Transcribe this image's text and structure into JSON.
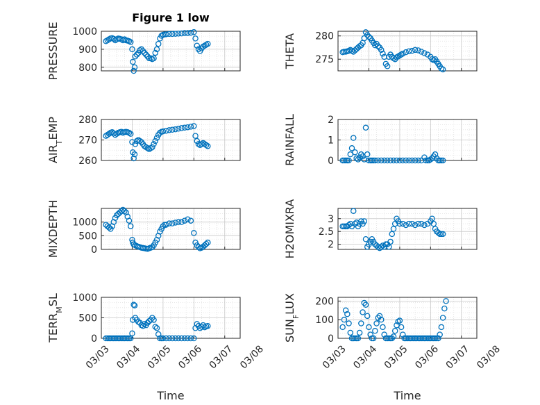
{
  "figure": {
    "title": "Figure 1 low",
    "xlabel": "Time"
  },
  "colors": {
    "marker": "#0072BD",
    "axes": "#262626",
    "grid": "#c8c8c8",
    "minor_grid": "#e0e0e0"
  },
  "chart_data": [
    {
      "type": "scatter",
      "panel": "top-left",
      "title": "Figure 1 low",
      "ylabel": "PRESSURE",
      "xlim": [
        0,
        4.5
      ],
      "ylim": [
        780,
        1000
      ],
      "yticks": [
        800,
        900,
        1000
      ],
      "xticks": [],
      "grid": "on",
      "series": [
        {
          "x": [
            0.15,
            0.2,
            0.25,
            0.3,
            0.35,
            0.4,
            0.45,
            0.5,
            0.55,
            0.6,
            0.65,
            0.7,
            0.75,
            0.8,
            0.85,
            0.9,
            0.95,
            1.0,
            1.02,
            1.05,
            1.08,
            1.1,
            1.15,
            1.2,
            1.25,
            1.3,
            1.35,
            1.4,
            1.45,
            1.5,
            1.55,
            1.6,
            1.65,
            1.7,
            1.75,
            1.8,
            1.85,
            1.9,
            1.95,
            2.0,
            2.05,
            2.1,
            2.2,
            2.3,
            2.4,
            2.5,
            2.6,
            2.7,
            2.8,
            2.9,
            3.0,
            3.05,
            3.1,
            3.15,
            3.2,
            3.25,
            3.3,
            3.35,
            3.4,
            3.45
          ],
          "y": [
            945,
            950,
            955,
            960,
            962,
            958,
            950,
            955,
            960,
            958,
            955,
            950,
            955,
            950,
            948,
            945,
            940,
            900,
            830,
            780,
            800,
            860,
            870,
            880,
            895,
            900,
            890,
            880,
            870,
            860,
            850,
            850,
            845,
            850,
            880,
            900,
            930,
            960,
            975,
            980,
            982,
            983,
            985,
            985,
            986,
            987,
            988,
            990,
            990,
            992,
            995,
            960,
            920,
            900,
            890,
            905,
            915,
            920,
            925,
            930
          ]
        }
      ]
    },
    {
      "type": "scatter",
      "panel": "top-right",
      "ylabel": "THETA",
      "xlim": [
        0,
        4.5
      ],
      "ylim": [
        272.5,
        281
      ],
      "yticks": [
        275,
        280
      ],
      "xticks": [],
      "grid": "on",
      "series": [
        {
          "x": [
            0.15,
            0.2,
            0.25,
            0.3,
            0.35,
            0.4,
            0.45,
            0.5,
            0.55,
            0.6,
            0.65,
            0.7,
            0.75,
            0.8,
            0.85,
            0.9,
            0.95,
            1.0,
            1.05,
            1.1,
            1.15,
            1.2,
            1.25,
            1.3,
            1.35,
            1.4,
            1.45,
            1.5,
            1.55,
            1.6,
            1.65,
            1.7,
            1.75,
            1.8,
            1.85,
            1.9,
            1.95,
            2.0,
            2.05,
            2.1,
            2.2,
            2.3,
            2.4,
            2.5,
            2.6,
            2.7,
            2.8,
            2.9,
            3.0,
            3.05,
            3.1,
            3.15,
            3.2,
            3.25,
            3.3,
            3.35,
            3.4
          ],
          "y": [
            276.5,
            276.6,
            276.6,
            276.7,
            276.8,
            277.0,
            276.8,
            276.6,
            276.9,
            277.2,
            277.5,
            277.8,
            278.0,
            278.5,
            279.5,
            280.8,
            280.2,
            279.8,
            279.5,
            279.0,
            278.5,
            278.0,
            278.3,
            277.8,
            277.5,
            277.0,
            276.2,
            275.5,
            274.0,
            273.5,
            275.5,
            276.0,
            275.5,
            275.2,
            275.0,
            275.4,
            275.6,
            275.8,
            276.0,
            276.2,
            276.5,
            276.7,
            276.8,
            277.0,
            276.9,
            276.6,
            276.3,
            276.0,
            275.5,
            275.0,
            274.8,
            275.0,
            274.5,
            274.0,
            273.5,
            273.0,
            272.8
          ]
        }
      ]
    },
    {
      "type": "scatter",
      "panel": "second-left",
      "ylabel": "AIR",
      "ylabel_sub": "T",
      "ylabel_tail": "EMP",
      "xlim": [
        0,
        4.5
      ],
      "ylim": [
        260,
        280
      ],
      "yticks": [
        260,
        270,
        280
      ],
      "xticks": [],
      "grid": "on",
      "series": [
        {
          "x": [
            0.15,
            0.2,
            0.25,
            0.3,
            0.35,
            0.4,
            0.45,
            0.5,
            0.55,
            0.6,
            0.65,
            0.7,
            0.75,
            0.8,
            0.85,
            0.9,
            0.95,
            1.0,
            1.02,
            1.05,
            1.08,
            1.1,
            1.15,
            1.2,
            1.25,
            1.3,
            1.35,
            1.4,
            1.45,
            1.5,
            1.55,
            1.6,
            1.65,
            1.7,
            1.75,
            1.8,
            1.85,
            1.9,
            1.95,
            2.0,
            2.1,
            2.2,
            2.3,
            2.4,
            2.5,
            2.6,
            2.7,
            2.8,
            2.9,
            3.0,
            3.05,
            3.1,
            3.15,
            3.2,
            3.25,
            3.3,
            3.35,
            3.4,
            3.45
          ],
          "y": [
            272,
            272.5,
            273,
            273.5,
            273.8,
            273.2,
            272.5,
            273,
            273.5,
            273.8,
            274,
            273.5,
            273.8,
            274,
            273.8,
            273.5,
            273,
            269,
            264,
            261,
            263,
            268,
            269.5,
            270,
            269.5,
            269,
            268,
            267,
            266.5,
            266,
            265.5,
            266,
            266.5,
            268,
            269.5,
            271,
            272.5,
            273.5,
            274,
            274.2,
            274.5,
            274.8,
            275,
            275.2,
            275.5,
            275.8,
            276,
            276.2,
            276.5,
            276.8,
            272,
            269.5,
            268,
            267.5,
            268,
            268.5,
            268,
            267.5,
            267
          ]
        }
      ]
    },
    {
      "type": "scatter",
      "panel": "second-right",
      "ylabel": "RAINFALL",
      "xlim": [
        0,
        4.5
      ],
      "ylim": [
        0,
        2
      ],
      "yticks": [
        0,
        1,
        2
      ],
      "xticks": [],
      "grid": "on",
      "series": [
        {
          "x": [
            0.15,
            0.2,
            0.25,
            0.3,
            0.35,
            0.4,
            0.45,
            0.5,
            0.55,
            0.6,
            0.65,
            0.7,
            0.75,
            0.8,
            0.85,
            0.9,
            0.95,
            1.0,
            1.05,
            1.1,
            1.15,
            1.2,
            1.3,
            1.4,
            1.5,
            1.6,
            1.7,
            1.8,
            1.9,
            2.0,
            2.1,
            2.2,
            2.3,
            2.4,
            2.5,
            2.6,
            2.7,
            2.8,
            2.85,
            2.9,
            2.95,
            3.0,
            3.05,
            3.1,
            3.15,
            3.2,
            3.25,
            3.3,
            3.35,
            3.4
          ],
          "y": [
            0,
            0,
            0,
            0,
            0,
            0.3,
            0.6,
            1.1,
            0.4,
            0.1,
            0.05,
            0.15,
            0.3,
            0.2,
            0.05,
            1.6,
            0.3,
            0,
            0,
            0,
            0,
            0,
            0,
            0,
            0,
            0,
            0,
            0,
            0,
            0,
            0,
            0,
            0,
            0,
            0,
            0,
            0,
            0.15,
            0,
            0,
            0,
            0.05,
            0.1,
            0.2,
            0.3,
            0.1,
            0,
            0,
            0,
            0
          ]
        }
      ]
    },
    {
      "type": "scatter",
      "panel": "third-left",
      "ylabel": "MIXDEPTH",
      "xlim": [
        0,
        4.5
      ],
      "ylim": [
        0,
        1500
      ],
      "yticks": [
        0,
        500,
        1000
      ],
      "xticks": [],
      "grid": "on",
      "series": [
        {
          "x": [
            0.15,
            0.2,
            0.25,
            0.3,
            0.35,
            0.4,
            0.45,
            0.5,
            0.55,
            0.6,
            0.65,
            0.7,
            0.75,
            0.8,
            0.85,
            0.9,
            0.95,
            1.0,
            1.02,
            1.05,
            1.1,
            1.15,
            1.2,
            1.25,
            1.3,
            1.35,
            1.4,
            1.45,
            1.5,
            1.55,
            1.6,
            1.65,
            1.7,
            1.75,
            1.8,
            1.85,
            1.9,
            1.95,
            2.0,
            2.05,
            2.1,
            2.2,
            2.3,
            2.4,
            2.5,
            2.6,
            2.7,
            2.8,
            2.9,
            3.0,
            3.05,
            3.1,
            3.15,
            3.2,
            3.25,
            3.3,
            3.35,
            3.4,
            3.45
          ],
          "y": [
            900,
            850,
            800,
            750,
            850,
            1000,
            1150,
            1250,
            1300,
            1350,
            1400,
            1450,
            1400,
            1350,
            1200,
            1050,
            850,
            350,
            250,
            180,
            150,
            120,
            100,
            80,
            60,
            50,
            40,
            30,
            20,
            40,
            60,
            80,
            150,
            250,
            350,
            500,
            650,
            750,
            850,
            900,
            900,
            950,
            950,
            980,
            1000,
            1000,
            1050,
            1100,
            1050,
            600,
            250,
            150,
            80,
            40,
            60,
            100,
            150,
            200,
            250
          ]
        }
      ]
    },
    {
      "type": "scatter",
      "panel": "third-right",
      "ylabel": "H2OMIXRA",
      "xlim": [
        0,
        4.5
      ],
      "ylim": [
        1.8,
        3.4
      ],
      "yticks": [
        2,
        2.5,
        3
      ],
      "xticks": [],
      "grid": "on",
      "series": [
        {
          "x": [
            0.15,
            0.2,
            0.25,
            0.3,
            0.35,
            0.4,
            0.45,
            0.5,
            0.55,
            0.6,
            0.65,
            0.7,
            0.75,
            0.8,
            0.85,
            0.9,
            0.95,
            1.0,
            1.05,
            1.1,
            1.15,
            1.2,
            1.25,
            1.3,
            1.35,
            1.4,
            1.45,
            1.5,
            1.55,
            1.6,
            1.65,
            1.7,
            1.75,
            1.8,
            1.85,
            1.9,
            1.95,
            2.0,
            2.1,
            2.2,
            2.3,
            2.4,
            2.5,
            2.6,
            2.7,
            2.8,
            2.9,
            3.0,
            3.05,
            3.1,
            3.15,
            3.2,
            3.25,
            3.3,
            3.35,
            3.4
          ],
          "y": [
            2.7,
            2.7,
            2.7,
            2.7,
            2.75,
            2.8,
            2.7,
            3.3,
            2.8,
            2.85,
            2.7,
            2.8,
            2.9,
            2.8,
            2.9,
            2.2,
            1.9,
            2.0,
            2.1,
            2.2,
            2.1,
            2.0,
            1.95,
            1.9,
            1.85,
            1.9,
            1.95,
            1.9,
            2.0,
            2.0,
            1.9,
            2.1,
            2.4,
            2.6,
            2.8,
            3.0,
            2.9,
            2.8,
            2.8,
            2.75,
            2.8,
            2.8,
            2.75,
            2.8,
            2.8,
            2.75,
            2.8,
            2.9,
            3.0,
            2.8,
            2.6,
            2.5,
            2.45,
            2.4,
            2.4,
            2.4
          ]
        }
      ]
    },
    {
      "type": "scatter",
      "panel": "bottom-left",
      "ylabel": "TERR",
      "ylabel_sub": "M",
      "ylabel_tail": "SL",
      "xlim": [
        0,
        4.5
      ],
      "ylim": [
        0,
        1000
      ],
      "yticks": [
        0,
        500,
        1000
      ],
      "xticks": [
        "03/03",
        "03/04",
        "03/05",
        "03/06",
        "03/07",
        "03/08"
      ],
      "grid": "on",
      "series": [
        {
          "x": [
            0.15,
            0.2,
            0.25,
            0.3,
            0.35,
            0.4,
            0.45,
            0.5,
            0.55,
            0.6,
            0.65,
            0.7,
            0.75,
            0.8,
            0.85,
            0.9,
            0.95,
            1.0,
            1.02,
            1.05,
            1.08,
            1.1,
            1.15,
            1.2,
            1.25,
            1.3,
            1.35,
            1.4,
            1.45,
            1.5,
            1.55,
            1.6,
            1.65,
            1.7,
            1.75,
            1.8,
            1.85,
            1.9,
            1.95,
            2.0,
            2.1,
            2.2,
            2.3,
            2.4,
            2.5,
            2.6,
            2.7,
            2.8,
            2.9,
            3.0,
            3.05,
            3.1,
            3.15,
            3.2,
            3.25,
            3.3,
            3.35,
            3.4,
            3.45
          ],
          "y": [
            0,
            0,
            0,
            0,
            0,
            0,
            0,
            0,
            0,
            0,
            0,
            0,
            0,
            0,
            0,
            0,
            0,
            120,
            450,
            820,
            800,
            500,
            450,
            400,
            380,
            320,
            300,
            350,
            320,
            380,
            420,
            450,
            500,
            450,
            280,
            250,
            100,
            0,
            0,
            0,
            0,
            0,
            0,
            0,
            0,
            0,
            0,
            0,
            0,
            0,
            250,
            350,
            300,
            250,
            280,
            320,
            270,
            290,
            300
          ]
        }
      ]
    },
    {
      "type": "scatter",
      "panel": "bottom-right",
      "ylabel": "SUN",
      "ylabel_sub": "F",
      "ylabel_tail": "LUX",
      "xlim": [
        0,
        4.5
      ],
      "ylim": [
        0,
        220
      ],
      "yticks": [
        0,
        100,
        200
      ],
      "xticks": [
        "03/03",
        "03/04",
        "03/05",
        "03/06",
        "03/07",
        "03/08"
      ],
      "grid": "on",
      "series": [
        {
          "x": [
            0.15,
            0.2,
            0.25,
            0.3,
            0.35,
            0.4,
            0.45,
            0.5,
            0.55,
            0.6,
            0.65,
            0.7,
            0.75,
            0.8,
            0.85,
            0.9,
            0.95,
            1.0,
            1.05,
            1.1,
            1.15,
            1.2,
            1.25,
            1.3,
            1.35,
            1.4,
            1.45,
            1.5,
            1.55,
            1.6,
            1.65,
            1.7,
            1.75,
            1.8,
            1.85,
            1.9,
            1.95,
            2.0,
            2.05,
            2.1,
            2.15,
            2.2,
            2.25,
            2.3,
            2.35,
            2.4,
            2.45,
            2.5,
            2.55,
            2.6,
            2.65,
            2.7,
            2.75,
            2.8,
            2.85,
            2.9,
            2.95,
            3.0,
            3.05,
            3.1,
            3.15,
            3.2,
            3.25,
            3.3,
            3.35,
            3.4,
            3.45,
            3.5
          ],
          "y": [
            60,
            100,
            150,
            130,
            80,
            30,
            0,
            0,
            0,
            0,
            0,
            30,
            80,
            140,
            190,
            180,
            120,
            60,
            20,
            0,
            0,
            40,
            80,
            110,
            120,
            100,
            60,
            20,
            0,
            0,
            0,
            0,
            0,
            10,
            40,
            70,
            90,
            95,
            60,
            20,
            0,
            0,
            0,
            0,
            0,
            0,
            0,
            0,
            0,
            0,
            0,
            0,
            0,
            0,
            0,
            0,
            0,
            0,
            0,
            0,
            0,
            0,
            0,
            20,
            60,
            110,
            160,
            200
          ]
        }
      ]
    }
  ]
}
